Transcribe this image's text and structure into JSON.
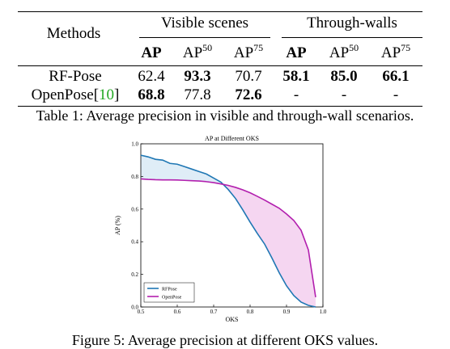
{
  "table": {
    "header_methods": "Methods",
    "group_visible": "Visible scenes",
    "group_through": "Through-walls",
    "col_ap": "AP",
    "col_ap50_base": "AP",
    "col_ap50_sup": "50",
    "col_ap75_base": "AP",
    "col_ap75_sup": "75",
    "rows": [
      {
        "method": "RF-Pose",
        "cite": "",
        "v_ap": "62.4",
        "v_ap50": "93.3",
        "v_ap75": "70.7",
        "t_ap": "58.1",
        "t_ap50": "85.0",
        "t_ap75": "66.1"
      },
      {
        "method": "OpenPose[",
        "cite": "10",
        "method_end": "]",
        "v_ap": "68.8",
        "v_ap50": "77.8",
        "v_ap75": "72.6",
        "t_ap": "-",
        "t_ap50": "-",
        "t_ap75": "-"
      }
    ],
    "caption": "Table 1: Average precision in visible and through-wall scenarios."
  },
  "figure": {
    "caption": "Figure 5: Average precision at different OKS values."
  },
  "chart_data": {
    "type": "line",
    "title": "AP at Different OKS",
    "xlabel": "OKS",
    "ylabel": "AP (%)",
    "xlim": [
      0.5,
      1.0
    ],
    "ylim": [
      0.0,
      1.0
    ],
    "xticks": [
      "0.5",
      "0.6",
      "0.7",
      "0.8",
      "0.9",
      "1.0"
    ],
    "yticks": [
      "0.0",
      "0.2",
      "0.4",
      "0.6",
      "0.8",
      "1.0"
    ],
    "legend_position": "bottom-left",
    "x": [
      0.5,
      0.52,
      0.54,
      0.56,
      0.58,
      0.6,
      0.62,
      0.64,
      0.66,
      0.68,
      0.7,
      0.72,
      0.74,
      0.76,
      0.78,
      0.8,
      0.82,
      0.84,
      0.86,
      0.88,
      0.9,
      0.92,
      0.94,
      0.96,
      0.98
    ],
    "series": [
      {
        "name": "RFPose",
        "color": "#1f77b4",
        "values": [
          0.93,
          0.92,
          0.905,
          0.9,
          0.88,
          0.875,
          0.86,
          0.845,
          0.83,
          0.815,
          0.79,
          0.765,
          0.72,
          0.665,
          0.595,
          0.52,
          0.45,
          0.385,
          0.3,
          0.21,
          0.13,
          0.07,
          0.03,
          0.01,
          0.0
        ]
      },
      {
        "name": "OpenPose",
        "color": "#b21fae",
        "values": [
          0.785,
          0.782,
          0.78,
          0.779,
          0.779,
          0.778,
          0.776,
          0.774,
          0.772,
          0.768,
          0.762,
          0.754,
          0.745,
          0.733,
          0.718,
          0.7,
          0.678,
          0.655,
          0.63,
          0.605,
          0.57,
          0.53,
          0.47,
          0.35,
          0.06
        ]
      }
    ],
    "fill_colors": {
      "blue_region": "#dfedf7",
      "pink_region": "#f5d6f1"
    }
  }
}
